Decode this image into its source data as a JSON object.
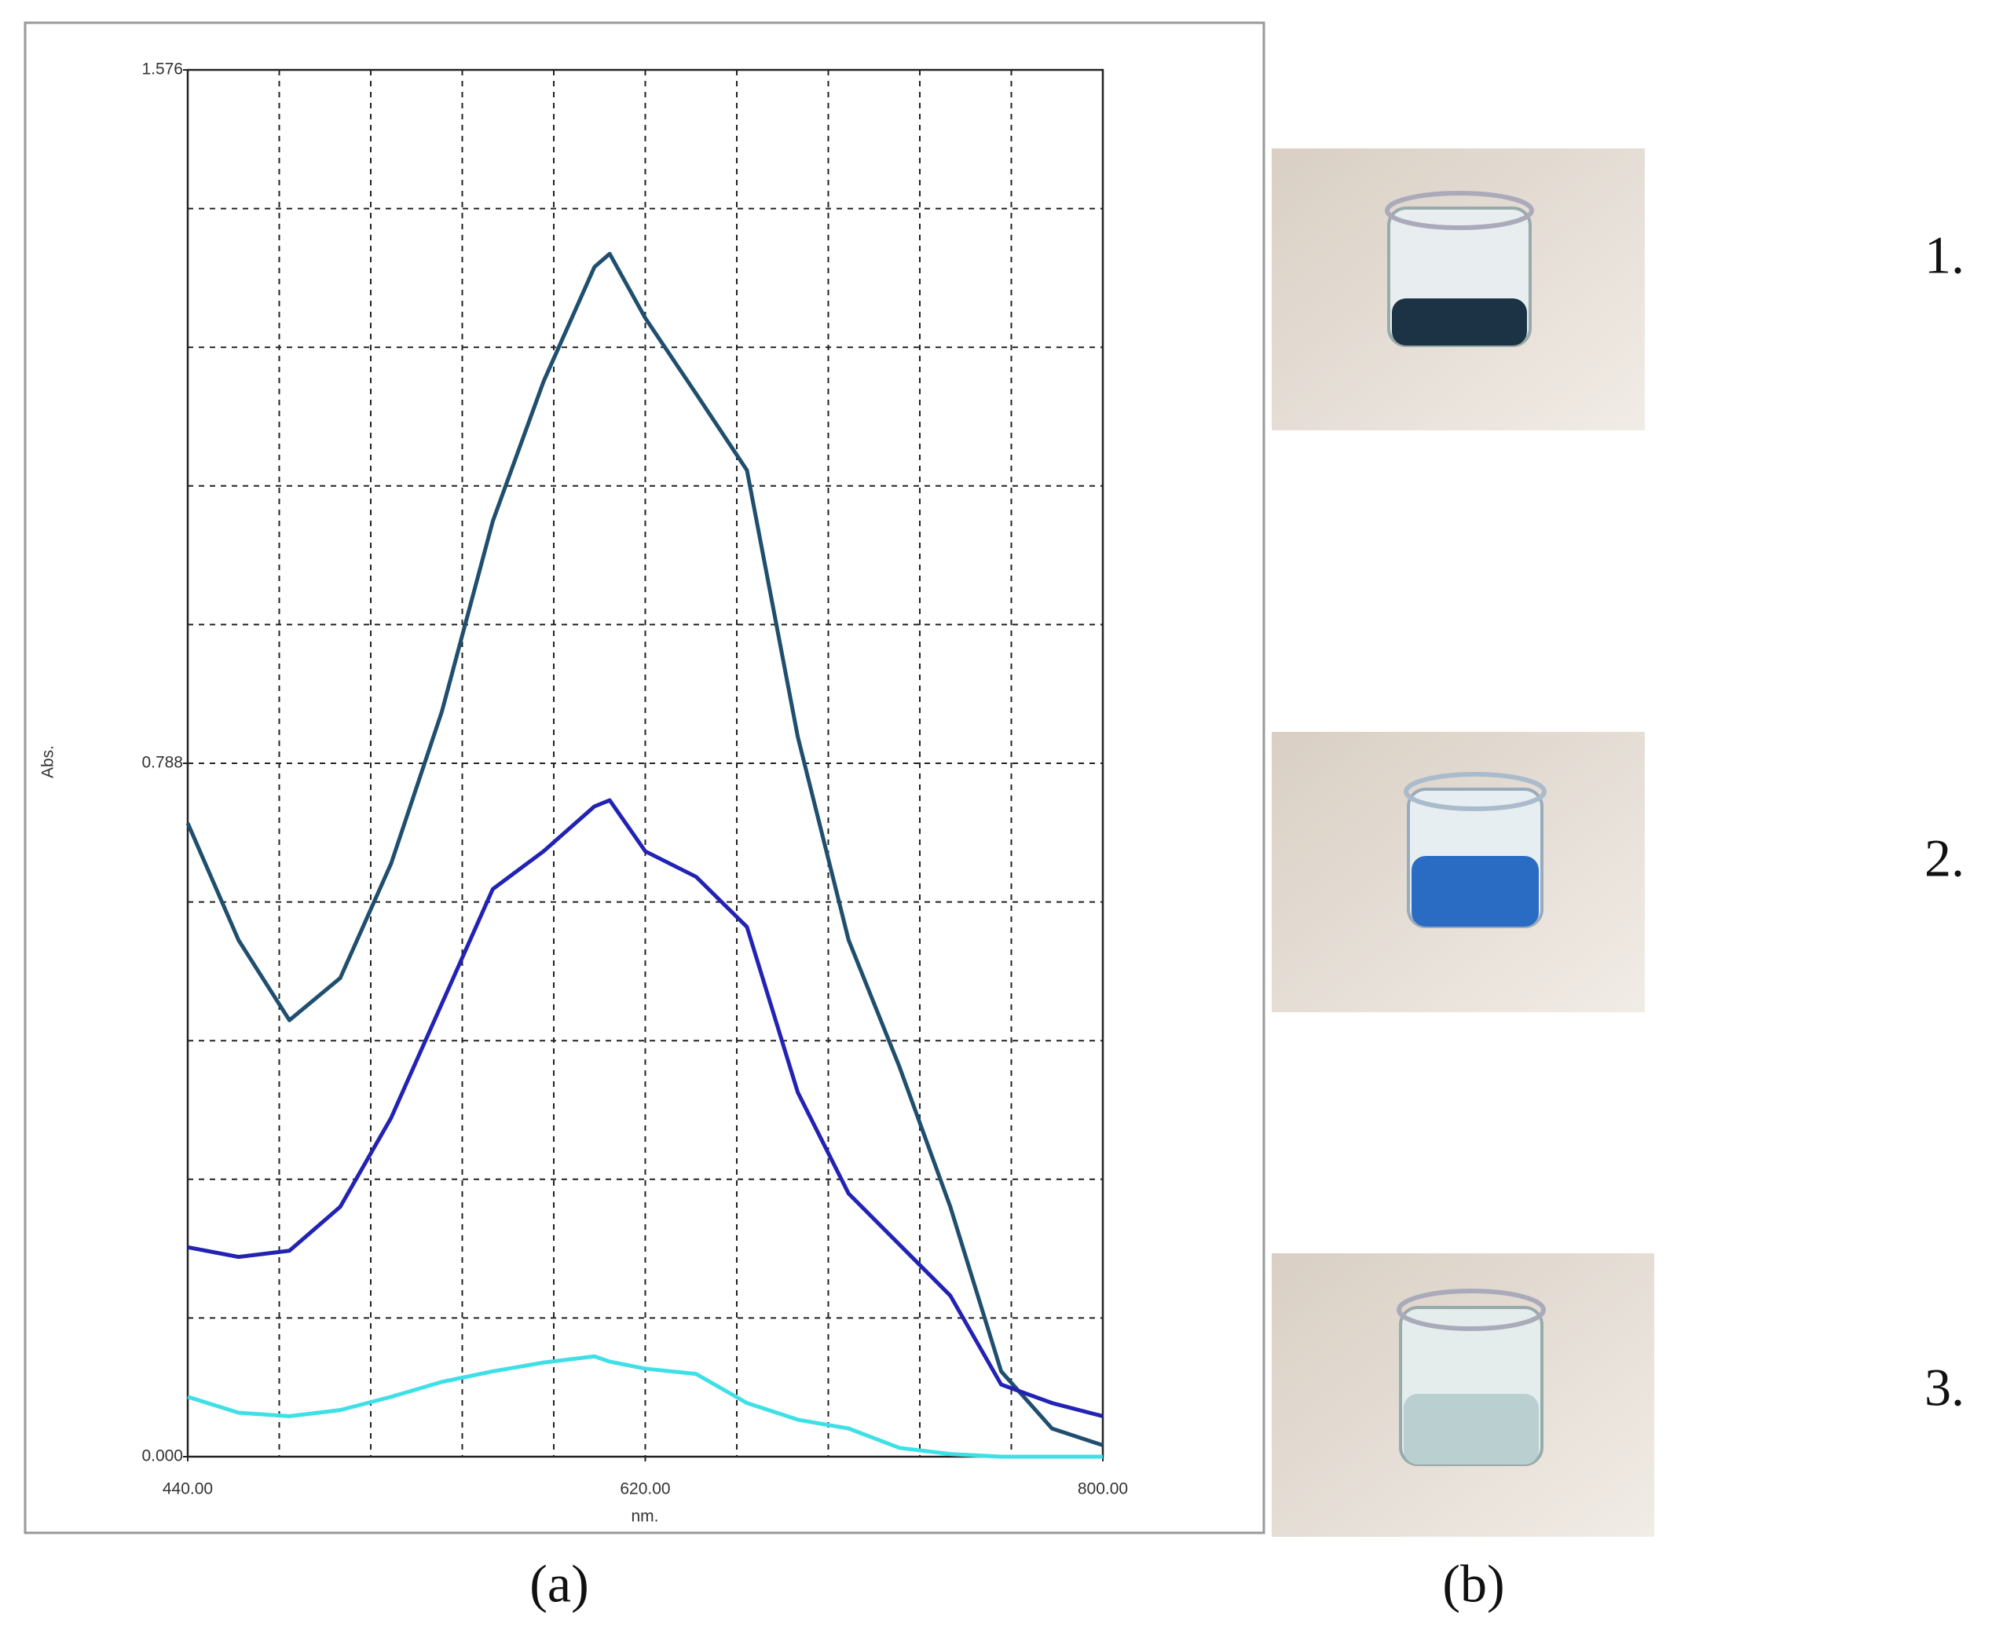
{
  "chart_data": {
    "type": "line",
    "x_label": "nm.",
    "y_label": "Abs.",
    "xlim": [
      440,
      800
    ],
    "ylim": [
      0,
      1.576
    ],
    "xticks": [
      {
        "value": 440,
        "label": "440.00"
      },
      {
        "value": 620,
        "label": "620.00"
      },
      {
        "value": 800,
        "label": "800.00"
      }
    ],
    "yticks": [
      {
        "value": 0,
        "label": "0.000"
      },
      {
        "value": 0.788,
        "label": "0.788"
      },
      {
        "value": 1.576,
        "label": "1.576"
      }
    ],
    "xgrid": [
      476,
      512,
      548,
      584,
      620,
      656,
      692,
      728,
      764
    ],
    "ygrid": [
      0.1576,
      0.3152,
      0.4728,
      0.6304,
      0.788,
      0.9456,
      1.1032,
      1.2608,
      1.4184
    ],
    "grid": true,
    "x": [
      440,
      460,
      480,
      500,
      520,
      540,
      560,
      580,
      600,
      606,
      620,
      640,
      660,
      680,
      700,
      720,
      740,
      760,
      780,
      800
    ],
    "series": [
      {
        "color": "#1f4e6e",
        "values": [
          0.72,
          0.587,
          0.496,
          0.544,
          0.674,
          0.847,
          1.063,
          1.222,
          1.352,
          1.367,
          1.294,
          1.208,
          1.121,
          0.818,
          0.587,
          0.443,
          0.284,
          0.097,
          0.032,
          0.013
        ]
      },
      {
        "color": "#2222b4",
        "values": [
          0.238,
          0.227,
          0.234,
          0.284,
          0.385,
          0.515,
          0.645,
          0.688,
          0.739,
          0.746,
          0.688,
          0.659,
          0.602,
          0.414,
          0.299,
          0.241,
          0.183,
          0.082,
          0.061,
          0.046
        ]
      },
      {
        "color": "#3ee0e6",
        "values": [
          0.068,
          0.05,
          0.046,
          0.053,
          0.068,
          0.085,
          0.097,
          0.107,
          0.114,
          0.108,
          0.1,
          0.094,
          0.061,
          0.042,
          0.032,
          0.01,
          0.003,
          0,
          0,
          0
        ]
      }
    ]
  },
  "panels": {
    "a": "(a)",
    "b": "(b)"
  },
  "samples": [
    "1.",
    "2.",
    "3."
  ]
}
